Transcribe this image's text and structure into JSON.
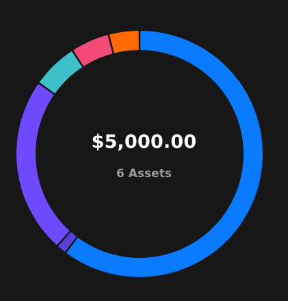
{
  "summary": {
    "total": "$5,000.00",
    "assets_label": "6 Assets"
  },
  "chart_data": {
    "type": "pie",
    "variant": "donut",
    "start_angle_deg": 0,
    "direction": "clockwise",
    "segment_gap_deg": 0.9,
    "legend": "none",
    "series": [
      {
        "values": [
          56.5,
          1.3,
          21.7,
          5.7,
          4.8,
          3.8
        ],
        "colors": [
          "#0A7AFF",
          "#5B3FD9",
          "#6E4BFF",
          "#3DC0C8",
          "#F24B78",
          "#FF6A00"
        ]
      }
    ]
  }
}
